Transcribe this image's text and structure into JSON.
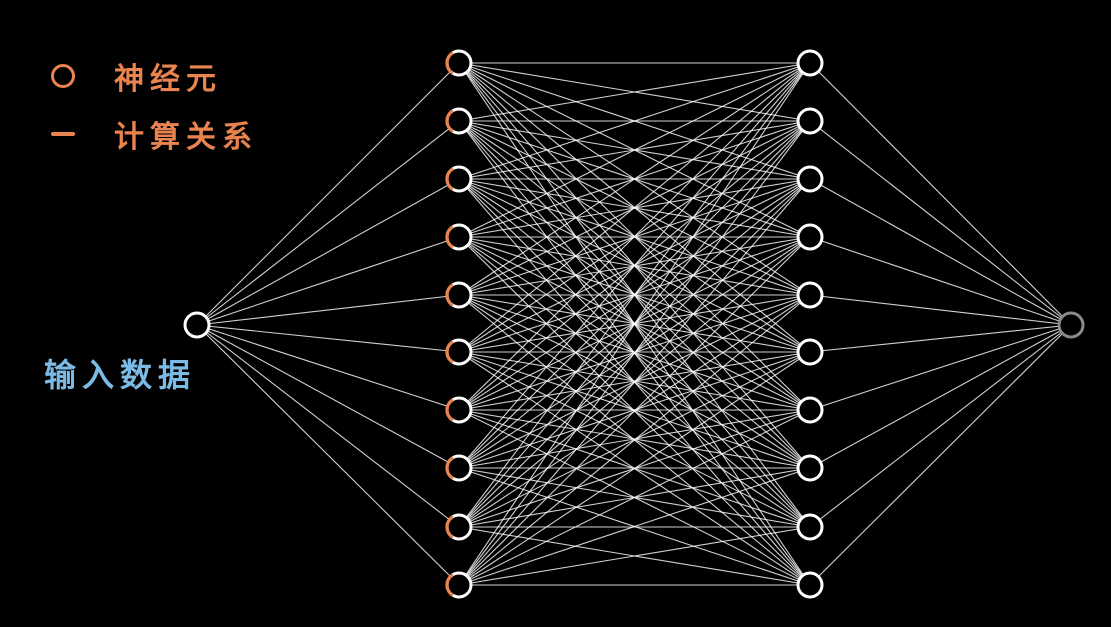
{
  "legend": {
    "neuron_label": "神经元",
    "edge_label": "计算关系",
    "neuron_icon": "circle-icon",
    "edge_icon": "line-icon"
  },
  "input_label": "输入数据",
  "network": {
    "layers": [
      1,
      10,
      10,
      1
    ]
  },
  "colors": {
    "background": "#000000",
    "node_stroke": "#ffffff",
    "edge": "#ffffff",
    "legend_accent": "#e9834f",
    "input_label": "#7bbbe6",
    "output_node": "#8a8a8a"
  }
}
